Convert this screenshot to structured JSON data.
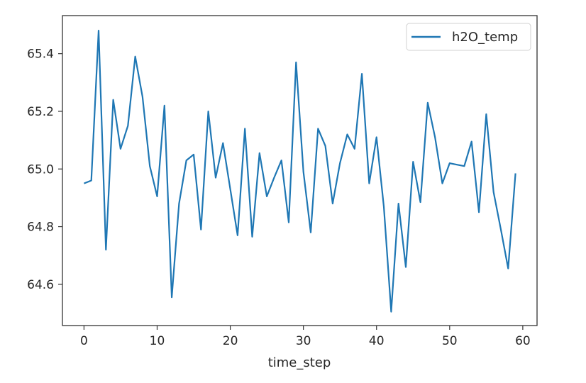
{
  "chart_data": {
    "type": "line",
    "title": "",
    "xlabel": "time_step",
    "ylabel": "",
    "xlim": [
      -2.95,
      61.95
    ],
    "ylim": [
      64.457,
      65.532
    ],
    "xticks": [
      0,
      10,
      20,
      30,
      40,
      50,
      60
    ],
    "xtick_labels": [
      "0",
      "10",
      "20",
      "30",
      "40",
      "50",
      "60"
    ],
    "yticks": [
      64.6,
      64.8,
      65.0,
      65.2,
      65.4
    ],
    "ytick_labels": [
      "64.6",
      "64.8",
      "65.0",
      "65.2",
      "65.4"
    ],
    "grid": false,
    "legend_position": "upper right",
    "x": [
      0,
      1,
      2,
      3,
      4,
      5,
      6,
      7,
      8,
      9,
      10,
      11,
      12,
      13,
      14,
      15,
      16,
      17,
      18,
      19,
      20,
      21,
      22,
      23,
      24,
      25,
      26,
      27,
      28,
      29,
      30,
      31,
      32,
      33,
      34,
      35,
      36,
      37,
      38,
      39,
      40,
      41,
      42,
      43,
      44,
      45,
      46,
      47,
      48,
      49,
      50,
      51,
      52,
      53,
      54,
      55,
      56,
      57,
      58,
      59
    ],
    "series": [
      {
        "name": "h2O_temp",
        "color": "#1f77b4",
        "values": [
          64.95,
          64.96,
          65.48,
          64.72,
          65.24,
          65.07,
          65.15,
          65.39,
          65.25,
          65.01,
          64.905,
          65.22,
          64.555,
          64.88,
          65.03,
          65.05,
          64.79,
          65.2,
          64.97,
          65.09,
          64.93,
          64.77,
          65.14,
          64.765,
          65.055,
          64.905,
          64.97,
          65.03,
          64.815,
          65.37,
          64.99,
          64.78,
          65.14,
          65.08,
          64.88,
          65.02,
          65.12,
          65.07,
          65.33,
          64.95,
          65.11,
          64.87,
          64.505,
          64.88,
          64.66,
          65.025,
          64.885,
          65.23,
          65.11,
          64.95,
          65.02,
          65.015,
          65.01,
          65.095,
          64.85,
          65.19,
          64.92,
          64.79,
          64.655,
          64.985
        ]
      }
    ]
  },
  "legend": {
    "label": "h2O_temp"
  }
}
